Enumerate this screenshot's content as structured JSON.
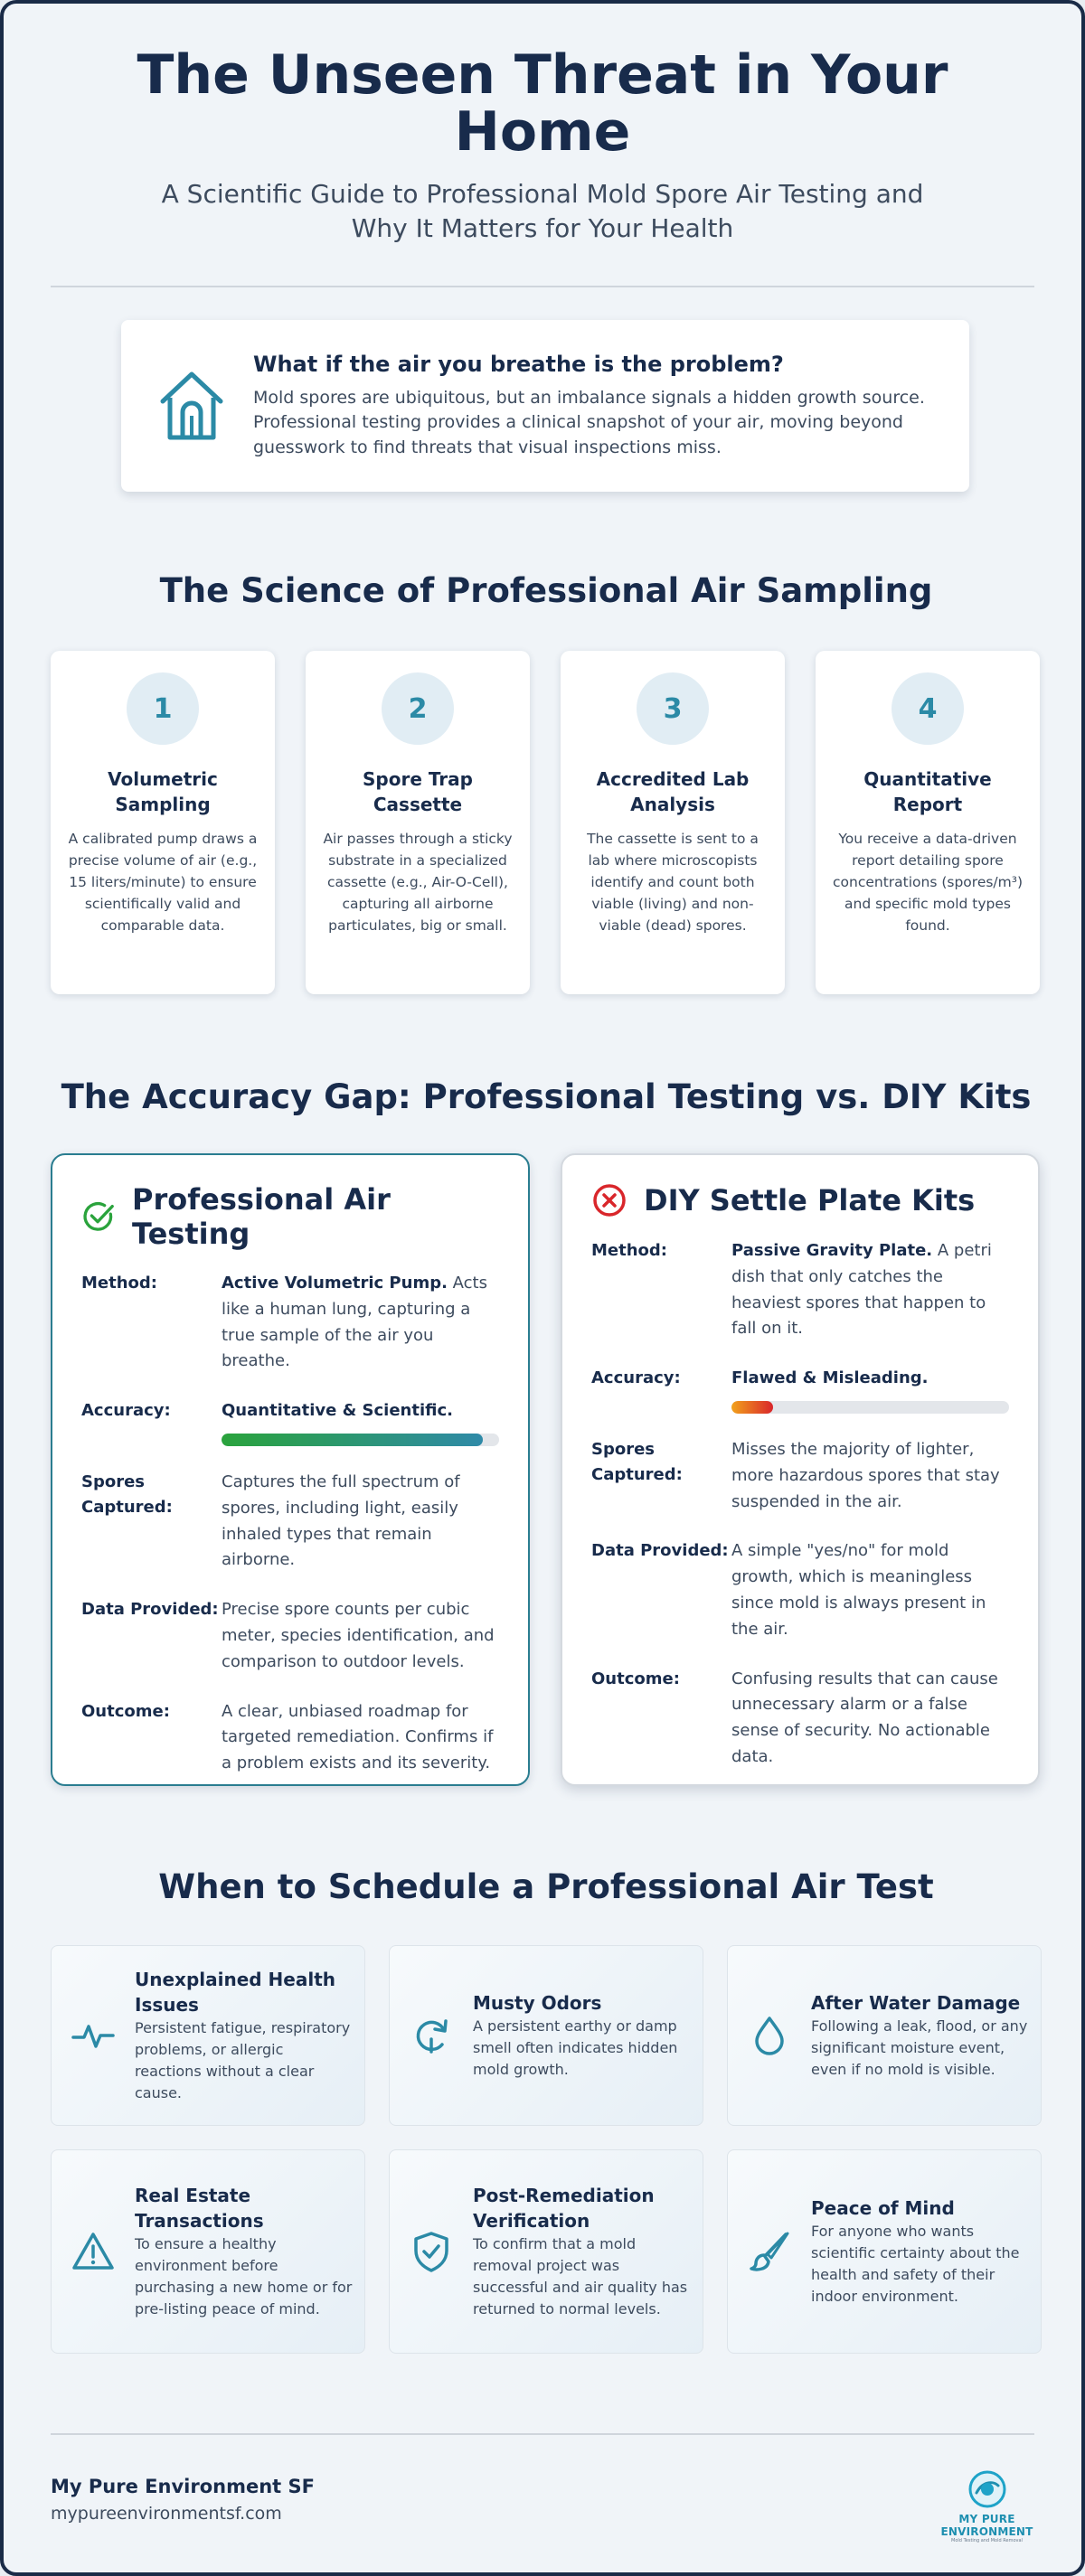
{
  "header": {
    "title": "The Unseen Threat in Your Home",
    "subtitle": "A Scientific Guide to Professional Mold Spore Air Testing and Why It Matters for Your Health"
  },
  "intro": {
    "icon": "house-icon",
    "question": "What if the air you breathe is the problem?",
    "text": "Mold spores are ubiquitous, but an imbalance signals a hidden growth source. Professional testing provides a clinical snapshot of your air, moving beyond guesswork to find threats that visual inspections miss."
  },
  "science": {
    "title": "The Science of Professional Air Sampling",
    "steps": [
      {
        "num": "1",
        "title": "Volumetric Sampling",
        "desc": "A calibrated pump draws a precise volume of air (e.g., 15 liters/minute) to ensure scientifically valid and comparable data."
      },
      {
        "num": "2",
        "title": "Spore Trap Cassette",
        "desc": "Air passes through a sticky substrate in a specialized cassette (e.g., Air-O-Cell), capturing all airborne particulates, big or small."
      },
      {
        "num": "3",
        "title": "Accredited Lab Analysis",
        "desc": "The cassette is sent to a lab where microscopists identify and count both viable (living) and non-viable (dead) spores."
      },
      {
        "num": "4",
        "title": "Quantitative Report",
        "desc": "You receive a data-driven report detailing spore concentrations (spores/m³) and specific mold types found."
      }
    ]
  },
  "comparison": {
    "title": "The Accuracy Gap: Professional Testing vs. DIY Kits",
    "labels": {
      "method": "Method:",
      "accuracy": "Accuracy:",
      "spores": "Spores Captured:",
      "data": "Data Provided:",
      "outcome": "Outcome:"
    },
    "pro": {
      "title": "Professional Air Testing",
      "icon": "check-circle-icon",
      "method_bold": "Active Volumetric Pump.",
      "method_text": " Acts like a human lung, capturing a true sample of the air you breathe.",
      "accuracy": "Quantitative & Scientific.",
      "accuracy_level": 0.94,
      "spores": "Captures the full spectrum of spores, including light, easily inhaled types that remain airborne.",
      "data": "Precise spore counts per cubic meter, species identification, and comparison to outdoor levels.",
      "outcome": "A clear, unbiased roadmap for targeted remediation. Confirms if a problem exists and its severity."
    },
    "diy": {
      "title": "DIY Settle Plate Kits",
      "icon": "x-circle-icon",
      "method_bold": "Passive Gravity Plate.",
      "method_text": " A petri dish that only catches the heaviest spores that happen to fall on it.",
      "accuracy": "Flawed & Misleading.",
      "accuracy_level": 0.15,
      "spores": "Misses the majority of lighter, more hazardous spores that stay suspended in the air.",
      "data": "A simple \"yes/no\" for mold growth, which is meaningless since mold is always present in the air.",
      "outcome": "Confusing results that can cause unnecessary alarm or a false sense of security. No actionable data."
    }
  },
  "when": {
    "title": "When to Schedule a Professional Air Test",
    "items": [
      {
        "icon": "heartbeat-icon",
        "title": "Unexplained Health Issues",
        "desc": "Persistent fatigue, respiratory problems, or allergic reactions without a clear cause."
      },
      {
        "icon": "refresh-icon",
        "title": "Musty Odors",
        "desc": "A persistent earthy or damp smell often indicates hidden mold growth."
      },
      {
        "icon": "water-drop-icon",
        "title": "After Water Damage",
        "desc": "Following a leak, flood, or any significant moisture event, even if no mold is visible."
      },
      {
        "icon": "warning-icon",
        "title": "Real Estate Transactions",
        "desc": "To ensure a healthy environment before purchasing a new home or for pre-listing peace of mind."
      },
      {
        "icon": "shield-check-icon",
        "title": "Post-Remediation Verification",
        "desc": "To confirm that a mold removal project was successful and air quality has returned to normal levels."
      },
      {
        "icon": "brush-icon",
        "title": "Peace of Mind",
        "desc": "For anyone who wants scientific certainty about the health and safety of their indoor environment."
      }
    ]
  },
  "footer": {
    "brand": "My Pure Environment SF",
    "url": "mypureenvironmentsf.com",
    "logo_text": "MY PURE ENVIRONMENT",
    "logo_sub": "Mold Testing and Mold Removal"
  },
  "colors": {
    "navy": "#182b4b",
    "teal": "#2b8aa6",
    "green": "#2aa33c",
    "red": "#d9262b"
  }
}
